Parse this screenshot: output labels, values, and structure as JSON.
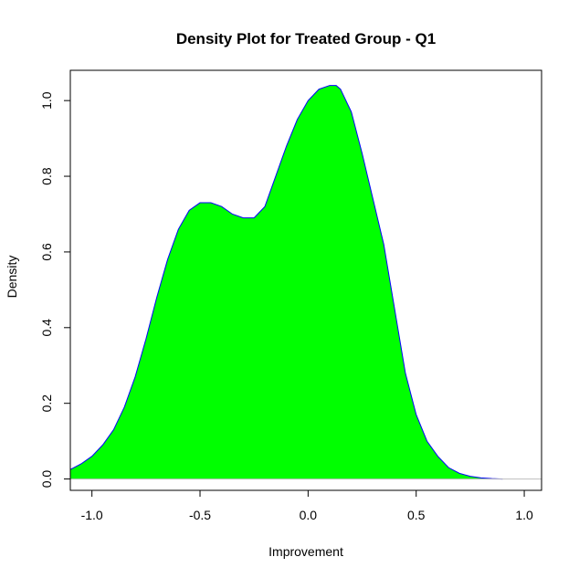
{
  "chart_data": {
    "type": "area",
    "title": "Density Plot for Treated Group - Q1",
    "xlabel": "Improvement",
    "ylabel": "Density",
    "xlim": [
      -1.1,
      1.08
    ],
    "ylim": [
      -0.03,
      1.08
    ],
    "x_ticks": [
      -1.0,
      -0.5,
      0.0,
      0.5,
      1.0
    ],
    "x_tick_labels": [
      "-1.0",
      "-0.5",
      "0.0",
      "0.5",
      "1.0"
    ],
    "y_ticks": [
      0.0,
      0.2,
      0.4,
      0.6,
      0.8,
      1.0
    ],
    "y_tick_labels": [
      "0.0",
      "0.2",
      "0.4",
      "0.6",
      "0.8",
      "1.0"
    ],
    "grid": false,
    "fill_color": "#00ff00",
    "line_color": "#0000ff",
    "baseline_color": "#bebebe",
    "series": [
      {
        "x": [
          -1.1,
          -1.05,
          -1.0,
          -0.95,
          -0.9,
          -0.85,
          -0.8,
          -0.75,
          -0.7,
          -0.65,
          -0.6,
          -0.55,
          -0.5,
          -0.45,
          -0.4,
          -0.35,
          -0.3,
          -0.25,
          -0.2,
          -0.15,
          -0.1,
          -0.05,
          0.0,
          0.05,
          0.1,
          0.13,
          0.15,
          0.2,
          0.25,
          0.3,
          0.35,
          0.4,
          0.45,
          0.5,
          0.55,
          0.6,
          0.65,
          0.7,
          0.75,
          0.8,
          0.85,
          0.9
        ],
        "y": [
          0.025,
          0.04,
          0.06,
          0.09,
          0.13,
          0.19,
          0.27,
          0.37,
          0.48,
          0.58,
          0.66,
          0.71,
          0.73,
          0.73,
          0.72,
          0.7,
          0.69,
          0.69,
          0.72,
          0.8,
          0.88,
          0.95,
          1.0,
          1.03,
          1.04,
          1.04,
          1.03,
          0.97,
          0.86,
          0.74,
          0.62,
          0.45,
          0.28,
          0.17,
          0.1,
          0.06,
          0.03,
          0.015,
          0.007,
          0.003,
          0.001,
          0.0
        ]
      }
    ]
  }
}
